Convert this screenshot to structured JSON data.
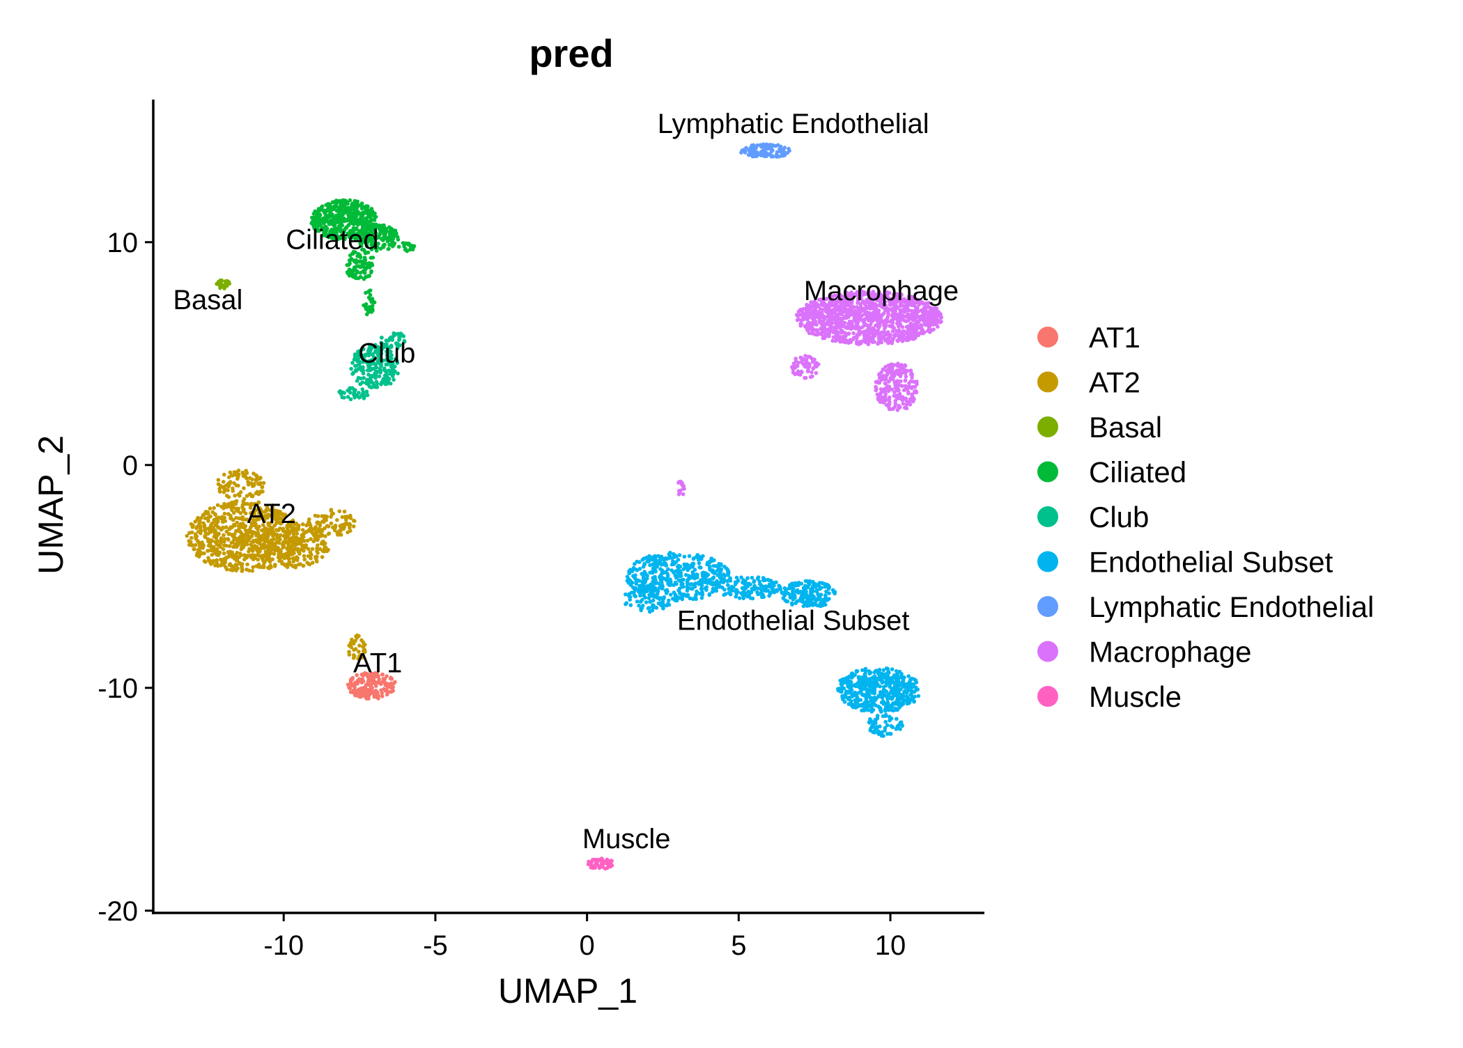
{
  "chart_data": {
    "type": "scatter",
    "title": "pred",
    "xlabel": "UMAP_1",
    "ylabel": "UMAP_2",
    "xlim": [
      -14.3,
      13.1
    ],
    "ylim": [
      -20.1,
      16.4
    ],
    "xticks": [
      -10,
      -5,
      0,
      5,
      10
    ],
    "yticks": [
      10,
      0,
      -10,
      -20
    ],
    "xtick_labels": [
      "-10",
      "-5",
      "0",
      "5",
      "10"
    ],
    "ytick_labels": [
      "10",
      "0",
      "-10",
      "-20"
    ],
    "grid": false,
    "legend_position": "right",
    "series": [
      {
        "name": "AT1",
        "color": "#F8766D",
        "clusters": [
          {
            "cx": -7.1,
            "cy": -9.9,
            "rx": 0.8,
            "ry": 0.6,
            "n": 180
          }
        ],
        "label": {
          "text": "AT1",
          "x": -6.9,
          "y": -9.3
        }
      },
      {
        "name": "AT2",
        "color": "#C49A00",
        "clusters": [
          {
            "cx": -11.3,
            "cy": -3.2,
            "rx": 1.9,
            "ry": 1.6,
            "n": 700
          },
          {
            "cx": -11.4,
            "cy": -0.9,
            "rx": 0.8,
            "ry": 0.7,
            "n": 90
          },
          {
            "cx": -9.7,
            "cy": -3.6,
            "rx": 1.2,
            "ry": 1.0,
            "n": 220
          },
          {
            "cx": -8.4,
            "cy": -2.6,
            "rx": 0.8,
            "ry": 0.6,
            "n": 90
          },
          {
            "cx": -7.6,
            "cy": -8.2,
            "rx": 0.3,
            "ry": 0.6,
            "n": 40
          }
        ],
        "label": {
          "text": "AT2",
          "x": -10.4,
          "y": -2.6
        }
      },
      {
        "name": "Basal",
        "color": "#7CAE00",
        "clusters": [
          {
            "cx": -12.0,
            "cy": 8.1,
            "rx": 0.25,
            "ry": 0.2,
            "n": 30
          }
        ],
        "label": {
          "text": "Basal",
          "x": -12.5,
          "y": 7.0
        }
      },
      {
        "name": "Ciliated",
        "color": "#00BA38",
        "clusters": [
          {
            "cx": -8.0,
            "cy": 11.0,
            "rx": 1.1,
            "ry": 0.9,
            "n": 450
          },
          {
            "cx": -6.9,
            "cy": 10.2,
            "rx": 0.7,
            "ry": 0.6,
            "n": 150
          },
          {
            "cx": -7.5,
            "cy": 9.0,
            "rx": 0.5,
            "ry": 0.7,
            "n": 100
          },
          {
            "cx": -5.9,
            "cy": 9.8,
            "rx": 0.3,
            "ry": 0.2,
            "n": 20
          },
          {
            "cx": -7.2,
            "cy": 7.3,
            "rx": 0.2,
            "ry": 0.6,
            "n": 30
          }
        ],
        "label": {
          "text": "Ciliated",
          "x": -8.4,
          "y": 9.7
        }
      },
      {
        "name": "Club",
        "color": "#00C08B",
        "clusters": [
          {
            "cx": -7.0,
            "cy": 4.4,
            "rx": 0.8,
            "ry": 1.0,
            "n": 220
          },
          {
            "cx": -7.7,
            "cy": 3.2,
            "rx": 0.5,
            "ry": 0.3,
            "n": 40
          },
          {
            "cx": -6.4,
            "cy": 5.6,
            "rx": 0.4,
            "ry": 0.4,
            "n": 40
          }
        ],
        "label": {
          "text": "Club",
          "x": -6.6,
          "y": 4.6
        }
      },
      {
        "name": "Endothelial Subset",
        "color": "#00B4EF",
        "clusters": [
          {
            "cx": 3.0,
            "cy": -5.0,
            "rx": 1.7,
            "ry": 1.1,
            "n": 420
          },
          {
            "cx": 2.0,
            "cy": -6.0,
            "rx": 0.8,
            "ry": 0.6,
            "n": 80
          },
          {
            "cx": 5.3,
            "cy": -5.5,
            "rx": 1.1,
            "ry": 0.5,
            "n": 130
          },
          {
            "cx": 7.3,
            "cy": -5.8,
            "rx": 0.9,
            "ry": 0.6,
            "n": 160
          },
          {
            "cx": 9.6,
            "cy": -10.1,
            "rx": 1.4,
            "ry": 1.0,
            "n": 500
          },
          {
            "cx": 9.8,
            "cy": -11.7,
            "rx": 0.6,
            "ry": 0.5,
            "n": 60
          }
        ],
        "label": {
          "text": "Endothelial Subset",
          "x": 6.8,
          "y": -7.4
        }
      },
      {
        "name": "Lymphatic Endothelial",
        "color": "#619CFF",
        "clusters": [
          {
            "cx": 5.9,
            "cy": 14.1,
            "rx": 0.85,
            "ry": 0.3,
            "n": 110
          }
        ],
        "label": {
          "text": "Lymphatic Endothelial",
          "x": 6.8,
          "y": 14.9
        }
      },
      {
        "name": "Macrophage",
        "color": "#DB72FB",
        "clusters": [
          {
            "cx": 9.3,
            "cy": 6.6,
            "rx": 2.4,
            "ry": 1.2,
            "n": 1200
          },
          {
            "cx": 7.2,
            "cy": 4.4,
            "rx": 0.5,
            "ry": 0.5,
            "n": 60
          },
          {
            "cx": 10.2,
            "cy": 3.5,
            "rx": 0.7,
            "ry": 1.1,
            "n": 200
          },
          {
            "cx": 3.1,
            "cy": -1.0,
            "rx": 0.15,
            "ry": 0.4,
            "n": 15
          }
        ],
        "label": {
          "text": "Macrophage",
          "x": 9.7,
          "y": 7.4
        }
      },
      {
        "name": "Muscle",
        "color": "#FF61C3",
        "clusters": [
          {
            "cx": 0.45,
            "cy": -17.9,
            "rx": 0.45,
            "ry": 0.25,
            "n": 45
          }
        ],
        "label": {
          "text": "Muscle",
          "x": 1.3,
          "y": -17.2
        }
      }
    ]
  }
}
